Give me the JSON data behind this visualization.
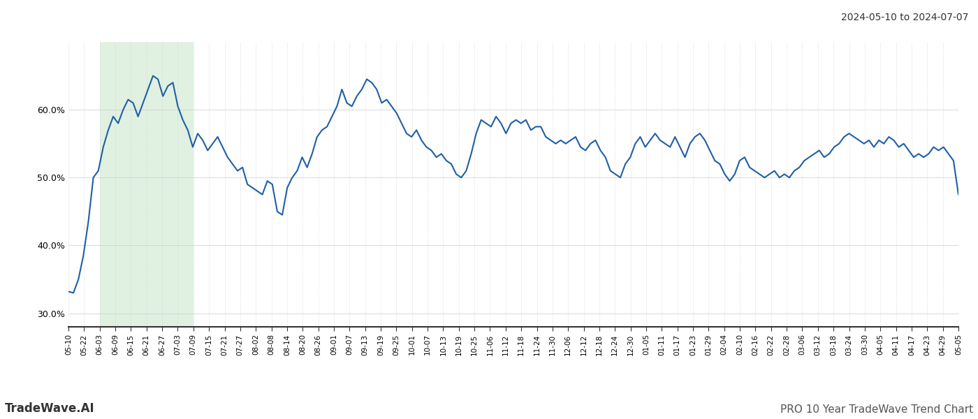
{
  "title_top_right": "2024-05-10 to 2024-07-07",
  "title_bottom_left": "TradeWave.AI",
  "title_bottom_right": "PRO 10 Year TradeWave Trend Chart",
  "line_color": "#1f5fa6",
  "line_width": 1.5,
  "shade_color": "#c8e6c9",
  "shade_alpha": 0.55,
  "background_color": "#ffffff",
  "grid_color": "#cccccc",
  "ylim": [
    28.0,
    70.0
  ],
  "yticks": [
    30.0,
    40.0,
    50.0,
    60.0
  ],
  "ytick_labels": [
    "30.0%",
    "40.0%",
    "50.0%",
    "60.0%"
  ],
  "xtick_labels": [
    "05-10",
    "05-22",
    "06-03",
    "06-09",
    "06-15",
    "06-21",
    "06-27",
    "07-03",
    "07-09",
    "07-15",
    "07-21",
    "07-27",
    "08-02",
    "08-08",
    "08-14",
    "08-20",
    "08-26",
    "09-01",
    "09-07",
    "09-13",
    "09-19",
    "09-25",
    "10-01",
    "10-07",
    "10-13",
    "10-19",
    "10-25",
    "11-06",
    "11-12",
    "11-18",
    "11-24",
    "11-30",
    "12-06",
    "12-12",
    "12-18",
    "12-24",
    "12-30",
    "01-05",
    "01-11",
    "01-17",
    "01-23",
    "01-29",
    "02-04",
    "02-10",
    "02-16",
    "02-22",
    "02-28",
    "03-06",
    "03-12",
    "03-18",
    "03-24",
    "03-30",
    "04-05",
    "04-11",
    "04-17",
    "04-23",
    "04-29",
    "05-05"
  ],
  "shade_start_label": "06-03",
  "shade_end_label": "07-09",
  "y_values": [
    33.2,
    33.0,
    35.0,
    38.5,
    43.5,
    50.0,
    51.0,
    54.5,
    57.0,
    59.0,
    58.0,
    60.0,
    61.5,
    61.0,
    59.0,
    61.0,
    63.0,
    65.0,
    64.5,
    62.0,
    63.5,
    64.0,
    60.5,
    58.5,
    57.0,
    54.5,
    56.5,
    55.5,
    54.0,
    55.0,
    56.0,
    54.5,
    53.0,
    52.0,
    51.0,
    51.5,
    49.0,
    48.5,
    48.0,
    47.5,
    49.5,
    49.0,
    45.0,
    44.5,
    48.5,
    50.0,
    51.0,
    53.0,
    51.5,
    53.5,
    56.0,
    57.0,
    57.5,
    59.0,
    60.5,
    63.0,
    61.0,
    60.5,
    62.0,
    63.0,
    64.5,
    64.0,
    63.0,
    61.0,
    61.5,
    60.5,
    59.5,
    58.0,
    56.5,
    56.0,
    57.0,
    55.5,
    54.5,
    54.0,
    53.0,
    53.5,
    52.5,
    52.0,
    50.5,
    50.0,
    51.0,
    53.5,
    56.5,
    58.5,
    58.0,
    57.5,
    59.0,
    58.0,
    56.5,
    58.0,
    58.5,
    58.0,
    58.5,
    57.0,
    57.5,
    57.5,
    56.0,
    55.5,
    55.0,
    55.5,
    55.0,
    55.5,
    56.0,
    54.5,
    54.0,
    55.0,
    55.5,
    54.0,
    53.0,
    51.0,
    50.5,
    50.0,
    52.0,
    53.0,
    55.0,
    56.0,
    54.5,
    55.5,
    56.5,
    55.5,
    55.0,
    54.5,
    56.0,
    54.5,
    53.0,
    55.0,
    56.0,
    56.5,
    55.5,
    54.0,
    52.5,
    52.0,
    50.5,
    49.5,
    50.5,
    52.5,
    53.0,
    51.5,
    51.0,
    50.5,
    50.0,
    50.5,
    51.0,
    50.0,
    50.5,
    50.0,
    51.0,
    51.5,
    52.5,
    53.0,
    53.5,
    54.0,
    53.0,
    53.5,
    54.5,
    55.0,
    56.0,
    56.5,
    56.0,
    55.5,
    55.0,
    55.5,
    54.5,
    55.5,
    55.0,
    56.0,
    55.5,
    54.5,
    55.0,
    54.0,
    53.0,
    53.5,
    53.0,
    53.5,
    54.5,
    54.0,
    54.5,
    53.5,
    52.5,
    47.5
  ]
}
